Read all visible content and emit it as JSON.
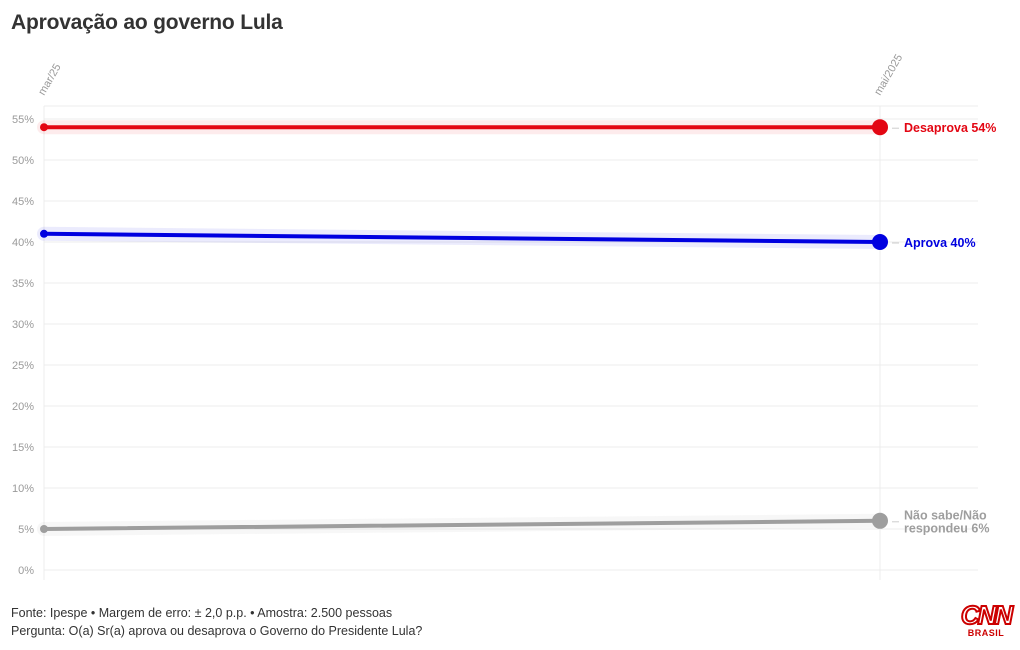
{
  "header": {
    "title": "Aprovação ao governo Lula"
  },
  "footer": {
    "source": "Fonte: Ipespe • Margem de erro: ± 2,0 p.p. • Amostra: 2.500 pessoas",
    "question": "Pergunta: O(a) Sr(a) aprova ou desaprova o Governo do Presidente Lula?"
  },
  "logo": {
    "name": "CNN",
    "sub": "BRASIL"
  },
  "chart_data": {
    "type": "line",
    "title": "Aprovação ao governo Lula",
    "x": [
      "mar/25",
      "mai/2025"
    ],
    "y_ticks": [
      "0%",
      "5%",
      "10%",
      "15%",
      "20%",
      "25%",
      "30%",
      "35%",
      "40%",
      "45%",
      "50%",
      "55%"
    ],
    "ylim": [
      0,
      55
    ],
    "grid": true,
    "series": [
      {
        "name": "Desaprova",
        "values": [
          54,
          54
        ],
        "color": "#e30613",
        "end_label": "Desaprova 54%"
      },
      {
        "name": "Aprova",
        "values": [
          41,
          40
        ],
        "color": "#0000e0",
        "end_label": "Aprova 40%"
      },
      {
        "name": "Não sabe/Não respondeu",
        "values": [
          5,
          6
        ],
        "color": "#9e9e9e",
        "end_label": [
          "Não sabe/Não",
          "respondeu 6%"
        ]
      }
    ]
  }
}
